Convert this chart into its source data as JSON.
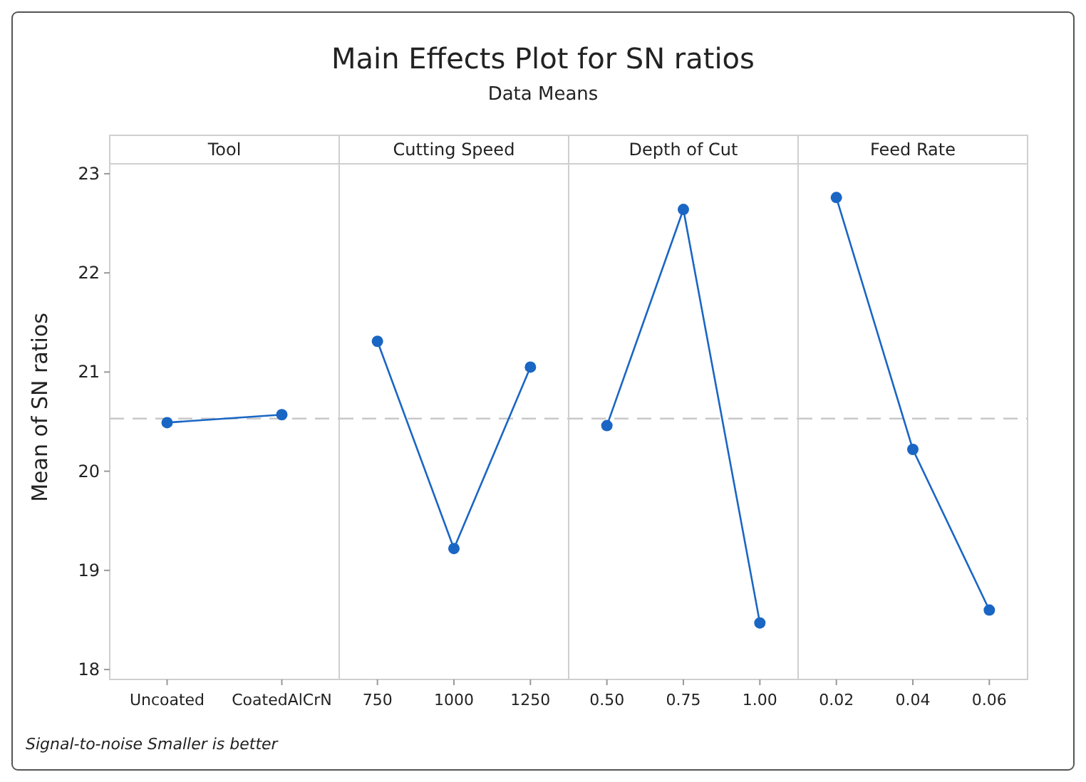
{
  "chart_data": [
    {
      "type": "line",
      "title": "Tool",
      "ylabel": "Mean of SN ratios",
      "annotations": [
        "Main Effects Plot for SN ratios",
        "Data Means",
        "Signal-to-noise Smaller is better"
      ],
      "categories": [
        "Uncoated",
        "CoatedAlCrN"
      ],
      "series": [
        {
          "color": "#1a66c4",
          "values": [
            20.49,
            20.57
          ]
        }
      ],
      "ylim": [
        17.9,
        23.1
      ],
      "yticks": [
        18,
        19,
        20,
        21,
        22,
        23
      ],
      "ref_lines": [
        {
          "axis": "y",
          "value": 20.53,
          "color": "#c8c8c8",
          "line_style": "dashed"
        }
      ],
      "marker": "circle",
      "line_style": "solid"
    },
    {
      "type": "line",
      "title": "Cutting Speed",
      "categories": [
        "750",
        "1000",
        "1250"
      ],
      "series": [
        {
          "color": "#1a66c4",
          "values": [
            21.31,
            19.22,
            21.05
          ]
        }
      ],
      "ylim": [
        17.9,
        23.1
      ],
      "tick_labels": "x",
      "ref_lines": [
        {
          "axis": "y",
          "value": 20.53,
          "color": "#c8c8c8",
          "line_style": "dashed"
        }
      ],
      "marker": "circle",
      "line_style": "solid"
    },
    {
      "type": "line",
      "title": "Depth of Cut",
      "categories": [
        "0.50",
        "0.75",
        "1.00"
      ],
      "series": [
        {
          "color": "#1a66c4",
          "values": [
            20.46,
            22.64,
            18.47
          ]
        }
      ],
      "ylim": [
        17.9,
        23.1
      ],
      "tick_labels": "x",
      "ref_lines": [
        {
          "axis": "y",
          "value": 20.53,
          "color": "#c8c8c8",
          "line_style": "dashed"
        }
      ],
      "marker": "circle",
      "line_style": "solid"
    },
    {
      "type": "line",
      "title": "Feed Rate",
      "categories": [
        "0.02",
        "0.04",
        "0.06"
      ],
      "series": [
        {
          "color": "#1a66c4",
          "values": [
            22.76,
            20.22,
            18.6
          ]
        }
      ],
      "ylim": [
        17.9,
        23.1
      ],
      "tick_labels": "x",
      "ref_lines": [
        {
          "axis": "y",
          "value": 20.53,
          "color": "#c8c8c8",
          "line_style": "dashed"
        }
      ],
      "marker": "circle",
      "line_style": "solid"
    }
  ]
}
